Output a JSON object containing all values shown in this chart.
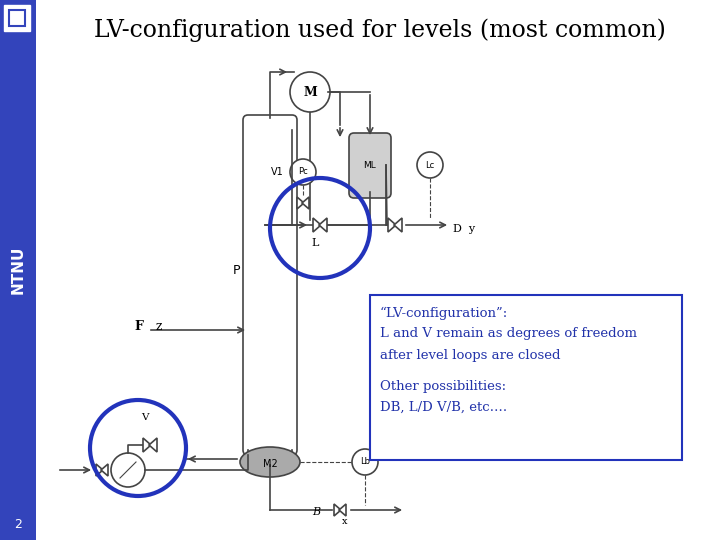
{
  "title": "LV-configuration used for levels (most common)",
  "title_fontsize": 17,
  "background_color": "#ffffff",
  "sidebar_color": "#3344bb",
  "text_box_text1": "“LV-configuration”:",
  "text_box_text2": "L and V remain as degrees of freedom",
  "text_box_text3": "after level loops are closed",
  "text_box_text4": "Other possibilities:",
  "text_box_text5": "DB, L/D V/B, etc….",
  "slide_number": "2",
  "circle_color": "#2233bb",
  "line_col": "#444444",
  "gray_fill": "#aaaaaa",
  "text_color": "#2233aa"
}
